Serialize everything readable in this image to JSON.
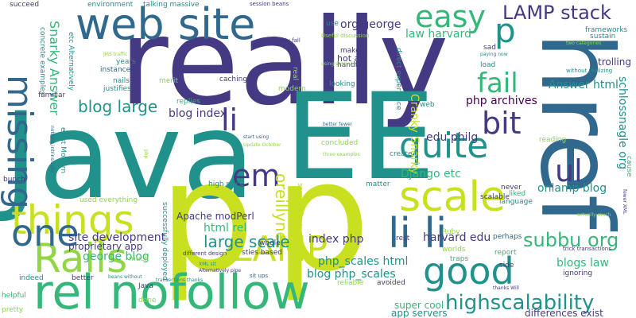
{
  "colors": {
    "yellow": "#c8e020",
    "lime": "#90d743",
    "green": "#35b779",
    "teal": "#21918c",
    "blue": "#31688e",
    "indigo": "#443983",
    "purple": "#440154"
  },
  "words": [
    {
      "text": "really",
      "color": "indigo"
    },
    {
      "text": "Java",
      "color": "teal"
    },
    {
      "text": "EE",
      "color": "teal"
    },
    {
      "text": "p",
      "color": "yellow"
    },
    {
      "text": "p",
      "color": "yellow"
    },
    {
      "text": "href",
      "color": "blue"
    },
    {
      "text": "web site",
      "color": "blue"
    },
    {
      "text": "rel nofollow",
      "color": "green"
    },
    {
      "text": "Rails",
      "color": "lime"
    },
    {
      "text": "things",
      "color": "yellow"
    },
    {
      "text": "one",
      "color": "blue"
    },
    {
      "text": "missing",
      "color": "blue"
    },
    {
      "text": "scale",
      "color": "yellow"
    },
    {
      "text": "quite",
      "color": "teal"
    },
    {
      "text": "LAMP",
      "color": "yellow"
    },
    {
      "text": "li li",
      "color": "blue"
    },
    {
      "text": "good",
      "color": "teal"
    },
    {
      "text": "easy",
      "color": "green"
    },
    {
      "text": "p",
      "color": "teal"
    },
    {
      "text": "LAMP stack",
      "color": "indigo"
    },
    {
      "text": "fail",
      "color": "green"
    },
    {
      "text": "bit",
      "color": "indigo"
    },
    {
      "text": "ul",
      "color": "indigo"
    },
    {
      "text": "li",
      "color": "indigo"
    },
    {
      "text": "em",
      "color": "indigo"
    },
    {
      "text": "highscalability",
      "color": "teal"
    },
    {
      "text": "subbu org",
      "color": "green"
    },
    {
      "text": "oreillynet",
      "color": "yellow"
    },
    {
      "text": "blog large",
      "color": "teal"
    },
    {
      "text": "large scale",
      "color": "teal"
    },
    {
      "text": "Snarky Answer",
      "color": "green"
    },
    {
      "text": "org george",
      "color": "indigo"
    },
    {
      "text": "law harvard",
      "color": "green"
    },
    {
      "text": "Answer html",
      "color": "teal"
    },
    {
      "text": "php archives",
      "color": "purple"
    },
    {
      "text": "edu philg",
      "color": "indigo"
    },
    {
      "text": "Cranky Snarky",
      "color": "yellow"
    },
    {
      "text": "onlamp blog",
      "color": "teal"
    },
    {
      "text": "schlossnagle org",
      "color": "teal"
    },
    {
      "text": "harvard edu",
      "color": "indigo"
    },
    {
      "text": "php_scales html",
      "color": "teal"
    },
    {
      "text": "blog php_scales",
      "color": "teal"
    },
    {
      "text": "site development",
      "color": "indigo"
    },
    {
      "text": "george blog",
      "color": "green"
    },
    {
      "text": "index php",
      "color": "indigo"
    },
    {
      "text": "html rel",
      "color": "green"
    },
    {
      "text": "blog index",
      "color": "indigo"
    },
    {
      "text": "Django etc",
      "color": "green"
    },
    {
      "text": "Apache modPerl",
      "color": "indigo"
    },
    {
      "text": "blogs law",
      "color": "green"
    },
    {
      "text": "proprietary app",
      "color": "indigo"
    },
    {
      "text": "super cool",
      "color": "green"
    },
    {
      "text": "app servers",
      "color": "teal"
    },
    {
      "text": "differences exist",
      "color": "indigo"
    },
    {
      "text": "trolling",
      "color": "indigo"
    },
    {
      "text": "sustain",
      "color": "teal"
    },
    {
      "text": "frameworks",
      "color": "teal"
    },
    {
      "text": "hot air",
      "color": "indigo"
    },
    {
      "text": "make",
      "color": "indigo"
    },
    {
      "text": "handful",
      "color": "indigo"
    },
    {
      "text": "looking",
      "color": "teal"
    },
    {
      "text": "concluded",
      "color": "lime"
    },
    {
      "text": "create",
      "color": "teal"
    },
    {
      "text": "scalable",
      "color": "indigo"
    },
    {
      "text": "language",
      "color": "teal"
    },
    {
      "text": "never",
      "color": "indigo"
    },
    {
      "text": "liked",
      "color": "green"
    },
    {
      "text": "reading",
      "color": "lime"
    },
    {
      "text": "caching",
      "color": "indigo"
    },
    {
      "text": "merit",
      "color": "lime"
    },
    {
      "text": "replies",
      "color": "green"
    },
    {
      "text": "years",
      "color": "teal"
    },
    {
      "text": "instance",
      "color": "blue"
    },
    {
      "text": "nails",
      "color": "teal"
    },
    {
      "text": "justifies",
      "color": "teal"
    },
    {
      "text": "high price",
      "color": "teal"
    },
    {
      "text": "whole",
      "color": "indigo"
    },
    {
      "text": "sties based",
      "color": "indigo"
    },
    {
      "text": "succeed",
      "color": "indigo"
    },
    {
      "text": "environment",
      "color": "teal"
    },
    {
      "text": "talking massive",
      "color": "teal"
    },
    {
      "text": "session beans",
      "color": "indigo"
    },
    {
      "text": "simply fall",
      "color": "indigo"
    },
    {
      "text": "Useful discussion",
      "color": "lime"
    },
    {
      "text": "use",
      "color": "teal"
    },
    {
      "text": "sad",
      "color": "indigo"
    },
    {
      "text": "load",
      "color": "teal"
    },
    {
      "text": "two categories",
      "color": "lime"
    },
    {
      "text": "paying now",
      "color": "teal"
    },
    {
      "text": "without realizing",
      "color": "teal"
    },
    {
      "text": "concrete examples",
      "color": "teal"
    },
    {
      "text": "etc Alternatively",
      "color": "teal"
    },
    {
      "text": "JMS traffic",
      "color": "lime"
    },
    {
      "text": "familiar",
      "color": "indigo"
    },
    {
      "text": "bunch",
      "color": "indigo"
    },
    {
      "text": "exist Modern",
      "color": "teal"
    },
    {
      "text": "nothing intrinsically",
      "color": "blue"
    },
    {
      "text": "start using",
      "color": "blue"
    },
    {
      "text": "Update October",
      "color": "lime"
    },
    {
      "text": "three examples",
      "color": "lime"
    },
    {
      "text": "better fewer",
      "color": "blue"
    },
    {
      "text": "web",
      "color": "teal"
    },
    {
      "text": "direct experience",
      "color": "teal"
    },
    {
      "text": "real",
      "color": "lime"
    },
    {
      "text": "modern",
      "color": "lime"
    },
    {
      "text": "used everything",
      "color": "lime"
    },
    {
      "text": "much",
      "color": "lime"
    },
    {
      "text": "successfully deployed",
      "color": "teal"
    },
    {
      "text": "something super",
      "color": "yellow"
    },
    {
      "text": "matter",
      "color": "teal"
    },
    {
      "text": "rest",
      "color": "indigo"
    },
    {
      "text": "perhaps",
      "color": "blue"
    },
    {
      "text": "report",
      "color": "green"
    },
    {
      "text": "side",
      "color": "indigo"
    },
    {
      "text": "ignoring",
      "color": "indigo"
    },
    {
      "text": "trick transactions",
      "color": "indigo"
    },
    {
      "text": "fewer XML",
      "color": "indigo"
    },
    {
      "text": "actually much",
      "color": "lime"
    },
    {
      "text": "cause",
      "color": "green"
    },
    {
      "text": "Ruby",
      "color": "lime"
    },
    {
      "text": "worlds",
      "color": "lime"
    },
    {
      "text": "traps",
      "color": "green"
    },
    {
      "text": "thanks Will",
      "color": "indigo"
    },
    {
      "text": "avoided",
      "color": "indigo"
    },
    {
      "text": "reliable",
      "color": "lime"
    },
    {
      "text": "sit ups",
      "color": "blue"
    },
    {
      "text": "Alternatively pipe",
      "color": "indigo"
    },
    {
      "text": "XML sit",
      "color": "teal"
    },
    {
      "text": "different design",
      "color": "indigo"
    },
    {
      "text": "transactions thanks",
      "color": "teal"
    },
    {
      "text": "beans without",
      "color": "teal"
    },
    {
      "text": "indeed",
      "color": "teal"
    },
    {
      "text": "better",
      "color": "indigo"
    },
    {
      "text": "helpful",
      "color": "green"
    },
    {
      "text": "pretty",
      "color": "lime"
    },
    {
      "text": "Java",
      "color": "indigo"
    },
    {
      "text": "done",
      "color": "lime"
    },
    {
      "text": "php",
      "color": "lime"
    },
    {
      "text": "using session",
      "color": "lime"
    }
  ]
}
